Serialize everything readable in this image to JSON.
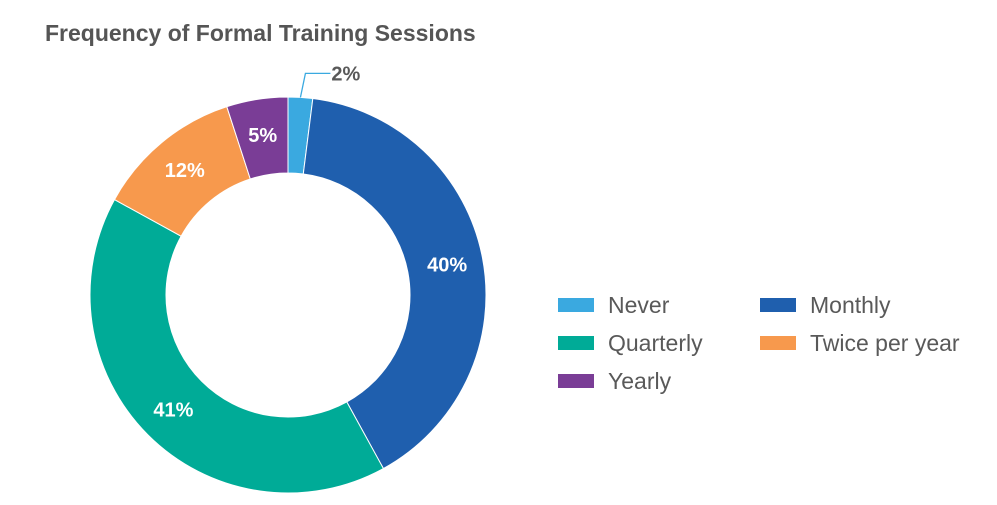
{
  "chart_data": {
    "type": "pie",
    "title": "Frequency of Formal Training Sessions",
    "donut": true,
    "slices": [
      {
        "name": "Never",
        "value": 2,
        "label": "2%",
        "color": "#3aa9e0",
        "label_placement": "outside-callout",
        "label_color": "#595959"
      },
      {
        "name": "Monthly",
        "value": 40,
        "label": "40%",
        "color": "#1f5fae",
        "label_placement": "inside",
        "label_color": "#ffffff"
      },
      {
        "name": "Quarterly",
        "value": 41,
        "label": "41%",
        "color": "#00ab97",
        "label_placement": "inside",
        "label_color": "#ffffff"
      },
      {
        "name": "Twice per year",
        "value": 12,
        "label": "12%",
        "color": "#f7994d",
        "label_placement": "inside",
        "label_color": "#ffffff"
      },
      {
        "name": "Yearly",
        "value": 5,
        "label": "5%",
        "color": "#7a3d96",
        "label_placement": "inside",
        "label_color": "#ffffff"
      }
    ],
    "legend": {
      "placement": "right",
      "items": [
        {
          "name": "Never",
          "color": "#3aa9e0"
        },
        {
          "name": "Monthly",
          "color": "#1f5fae"
        },
        {
          "name": "Quarterly",
          "color": "#00ab97"
        },
        {
          "name": "Twice per year",
          "color": "#f7994d"
        },
        {
          "name": "Yearly",
          "color": "#7a3d96"
        }
      ]
    }
  }
}
